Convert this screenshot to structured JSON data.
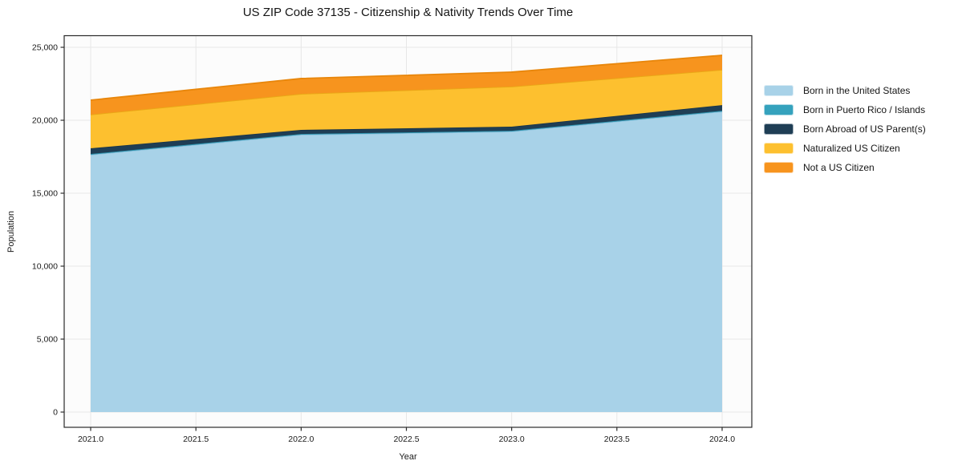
{
  "chart_data": {
    "type": "area",
    "stacked": true,
    "title": "US ZIP Code 37135 - Citizenship & Nativity Trends Over Time",
    "xlabel": "Year",
    "ylabel": "Population",
    "x": [
      2021,
      2022,
      2023,
      2024
    ],
    "xlim": [
      2021.0,
      2024.0
    ],
    "ylim": [
      0,
      25000
    ],
    "xticks": [
      2021.0,
      2021.5,
      2022.0,
      2022.5,
      2023.0,
      2023.5,
      2024.0
    ],
    "xtick_labels": [
      "2021.0",
      "2021.5",
      "2022.0",
      "2022.5",
      "2023.0",
      "2023.5",
      "2024.0"
    ],
    "yticks": [
      0,
      5000,
      10000,
      15000,
      20000,
      25000
    ],
    "ytick_labels": [
      "0",
      "5,000",
      "10,000",
      "15,000",
      "20,000",
      "25,000"
    ],
    "grid": true,
    "legend_position": "right",
    "series": [
      {
        "name": "Born in the United States",
        "color": "#a8d2e8",
        "edge": "#8fc2de",
        "values": [
          17640,
          19010,
          19230,
          20600
        ]
      },
      {
        "name": "Born in Puerto Rico / Islands",
        "color": "#35a2bd",
        "edge": "#2e93ad",
        "values": [
          50,
          50,
          50,
          50
        ]
      },
      {
        "name": "Born Abroad of US Parent(s)",
        "color": "#1f3e55",
        "edge": "#1a3549",
        "values": [
          390,
          280,
          280,
          390
        ]
      },
      {
        "name": "Naturalized US Citizen",
        "color": "#fdc02f",
        "edge": "#e9a816",
        "values": [
          2310,
          2470,
          2750,
          2420
        ]
      },
      {
        "name": "Not a US Citizen",
        "color": "#f7941e",
        "edge": "#e8860b",
        "values": [
          990,
          1050,
          990,
          990
        ]
      }
    ],
    "totals": [
      21380,
      22860,
      23300,
      24450
    ]
  },
  "colors": {
    "grid": "#e7e7e7",
    "plot_bg": "#fcfcfc",
    "spine": "#2b2b2b",
    "text": "#1a1a1a"
  }
}
